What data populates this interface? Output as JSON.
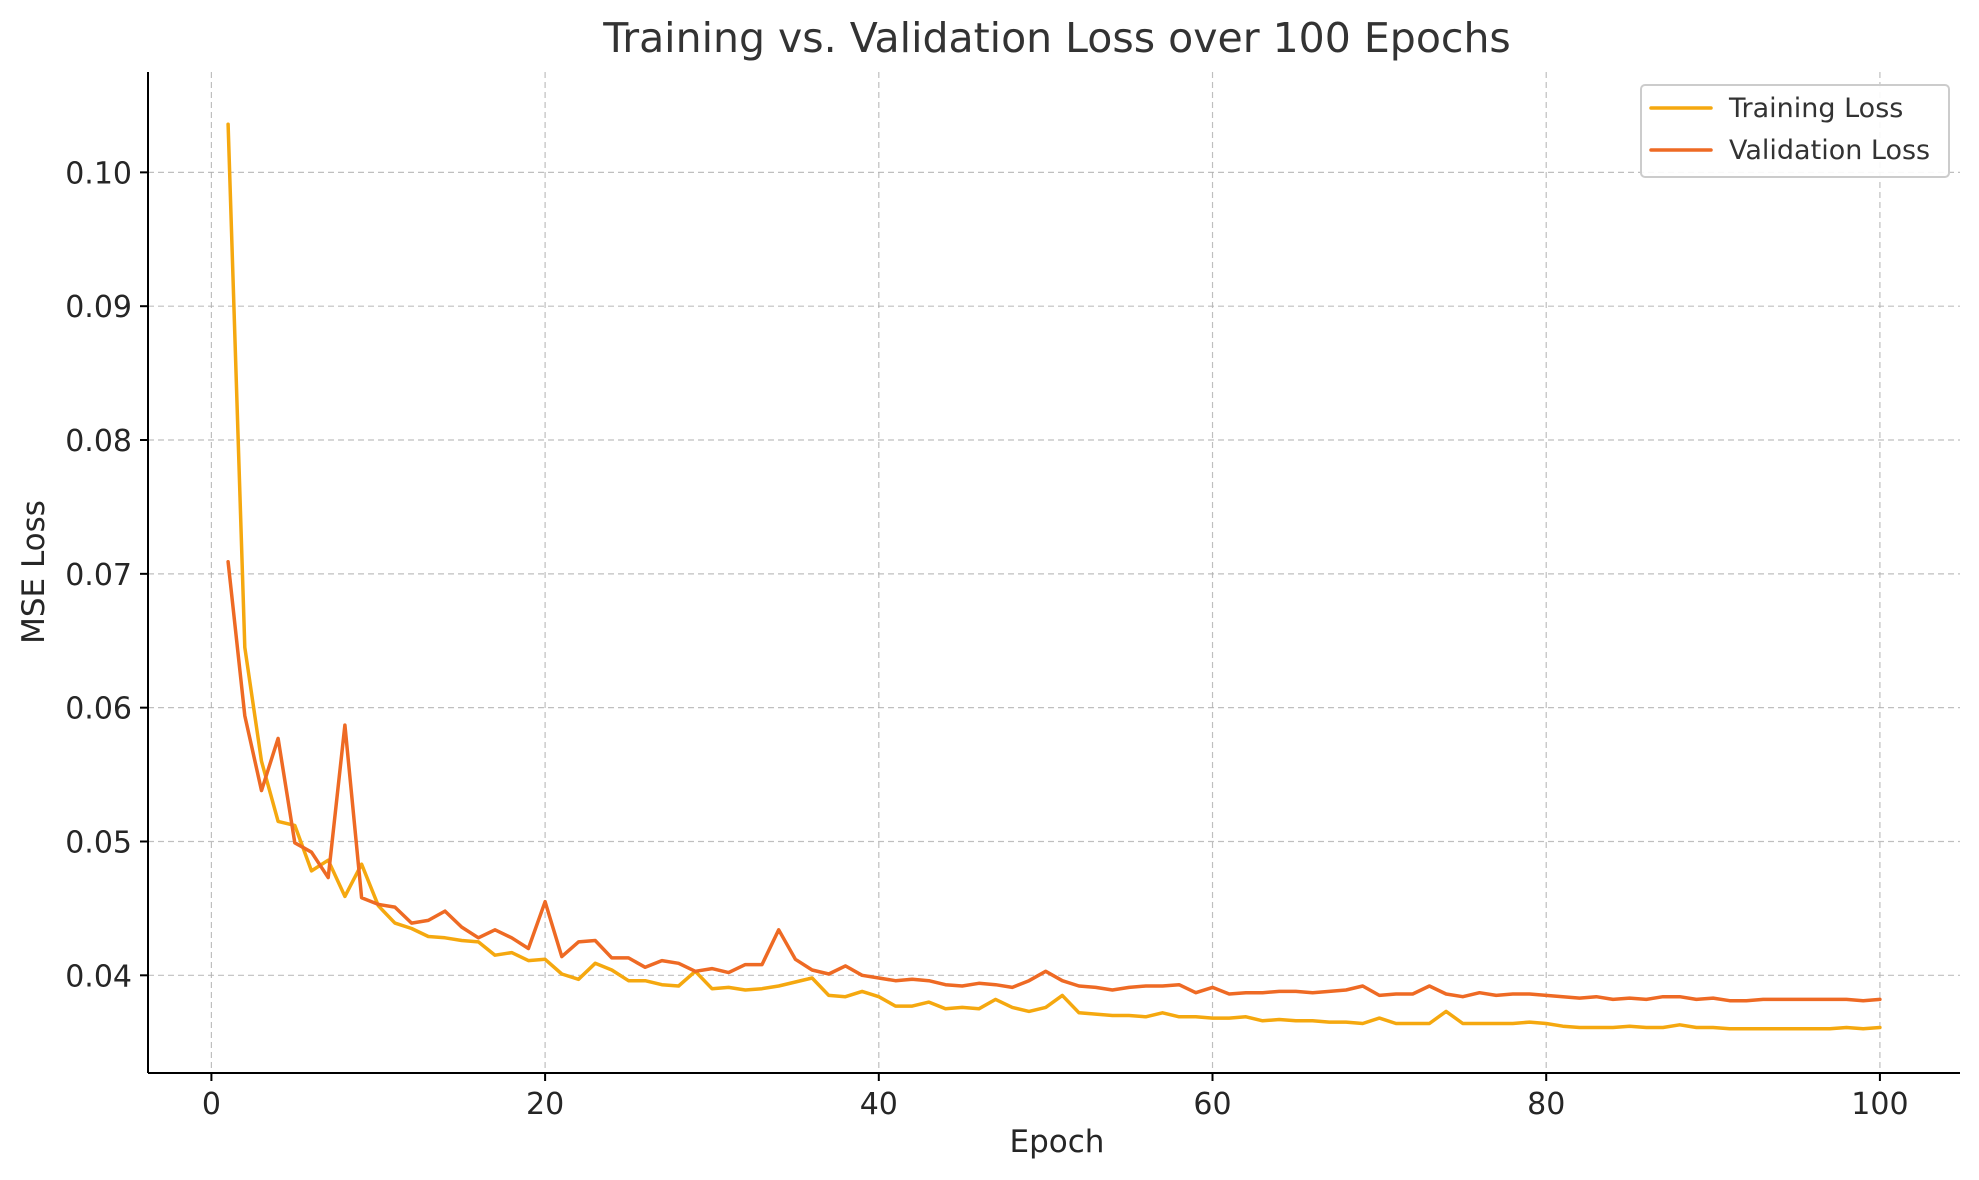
{
  "chart_data": {
    "type": "line",
    "title": "Training vs. Validation Loss over 100 Epochs",
    "xlabel": "Epoch",
    "ylabel": "MSE Loss",
    "xlim": [
      -3.8,
      104.8
    ],
    "ylim": [
      0.0327,
      0.1075
    ],
    "xticks": [
      0,
      20,
      40,
      60,
      80,
      100
    ],
    "yticks": [
      0.04,
      0.05,
      0.06,
      0.07,
      0.08,
      0.09,
      0.1
    ],
    "xtick_labels": [
      "0",
      "20",
      "40",
      "60",
      "80",
      "100"
    ],
    "ytick_labels": [
      "0.04",
      "0.05",
      "0.06",
      "0.07",
      "0.08",
      "0.09",
      "0.10"
    ],
    "grid": true,
    "legend_position": "top-right",
    "x": [
      1,
      2,
      3,
      4,
      5,
      6,
      7,
      8,
      9,
      10,
      11,
      12,
      13,
      14,
      15,
      16,
      17,
      18,
      19,
      20,
      21,
      22,
      23,
      24,
      25,
      26,
      27,
      28,
      29,
      30,
      31,
      32,
      33,
      34,
      35,
      36,
      37,
      38,
      39,
      40,
      41,
      42,
      43,
      44,
      45,
      46,
      47,
      48,
      49,
      50,
      51,
      52,
      53,
      54,
      55,
      56,
      57,
      58,
      59,
      60,
      61,
      62,
      63,
      64,
      65,
      66,
      67,
      68,
      69,
      70,
      71,
      72,
      73,
      74,
      75,
      76,
      77,
      78,
      79,
      80,
      81,
      82,
      83,
      84,
      85,
      86,
      87,
      88,
      89,
      90,
      91,
      92,
      93,
      94,
      95,
      96,
      97,
      98,
      99,
      100
    ],
    "series": [
      {
        "name": "Training Loss",
        "color": "#f5a80f",
        "values": [
          0.1036,
          0.0645,
          0.056,
          0.0515,
          0.0512,
          0.0478,
          0.0486,
          0.0459,
          0.0483,
          0.0452,
          0.0439,
          0.0435,
          0.0429,
          0.0428,
          0.0426,
          0.0425,
          0.0415,
          0.0417,
          0.0411,
          0.0412,
          0.0401,
          0.0397,
          0.0409,
          0.0404,
          0.0396,
          0.0396,
          0.0393,
          0.0392,
          0.0403,
          0.039,
          0.0391,
          0.0389,
          0.039,
          0.0392,
          0.0395,
          0.0398,
          0.0385,
          0.0384,
          0.0388,
          0.0384,
          0.0377,
          0.0377,
          0.038,
          0.0375,
          0.0376,
          0.0375,
          0.0382,
          0.0376,
          0.0373,
          0.0376,
          0.0385,
          0.0372,
          0.0371,
          0.037,
          0.037,
          0.0369,
          0.0372,
          0.0369,
          0.0369,
          0.0368,
          0.0368,
          0.0369,
          0.0366,
          0.0367,
          0.0366,
          0.0366,
          0.0365,
          0.0365,
          0.0364,
          0.0368,
          0.0364,
          0.0364,
          0.0364,
          0.0373,
          0.0364,
          0.0364,
          0.0364,
          0.0364,
          0.0365,
          0.0364,
          0.0362,
          0.0361,
          0.0361,
          0.0361,
          0.0362,
          0.0361,
          0.0361,
          0.0363,
          0.0361,
          0.0361,
          0.036,
          0.036,
          0.036,
          0.036,
          0.036,
          0.036,
          0.036,
          0.0361,
          0.036,
          0.0361
        ]
      },
      {
        "name": "Validation Loss",
        "color": "#ee6a24",
        "values": [
          0.0709,
          0.0594,
          0.0538,
          0.0577,
          0.0499,
          0.0492,
          0.0473,
          0.0587,
          0.0458,
          0.0453,
          0.0451,
          0.0439,
          0.0441,
          0.0448,
          0.0436,
          0.0428,
          0.0434,
          0.0428,
          0.042,
          0.0455,
          0.0414,
          0.0425,
          0.0426,
          0.0413,
          0.0413,
          0.0406,
          0.0411,
          0.0409,
          0.0403,
          0.0405,
          0.0402,
          0.0408,
          0.0408,
          0.0434,
          0.0412,
          0.0404,
          0.0401,
          0.0407,
          0.04,
          0.0398,
          0.0396,
          0.0397,
          0.0396,
          0.0393,
          0.0392,
          0.0394,
          0.0393,
          0.0391,
          0.0396,
          0.0403,
          0.0396,
          0.0392,
          0.0391,
          0.0389,
          0.0391,
          0.0392,
          0.0392,
          0.0393,
          0.0387,
          0.0391,
          0.0386,
          0.0387,
          0.0387,
          0.0388,
          0.0388,
          0.0387,
          0.0388,
          0.0389,
          0.0392,
          0.0385,
          0.0386,
          0.0386,
          0.0392,
          0.0386,
          0.0384,
          0.0387,
          0.0385,
          0.0386,
          0.0386,
          0.0385,
          0.0384,
          0.0383,
          0.0384,
          0.0382,
          0.0383,
          0.0382,
          0.0384,
          0.0384,
          0.0382,
          0.0383,
          0.0381,
          0.0381,
          0.0382,
          0.0382,
          0.0382,
          0.0382,
          0.0382,
          0.0382,
          0.0381,
          0.0382
        ]
      }
    ]
  }
}
